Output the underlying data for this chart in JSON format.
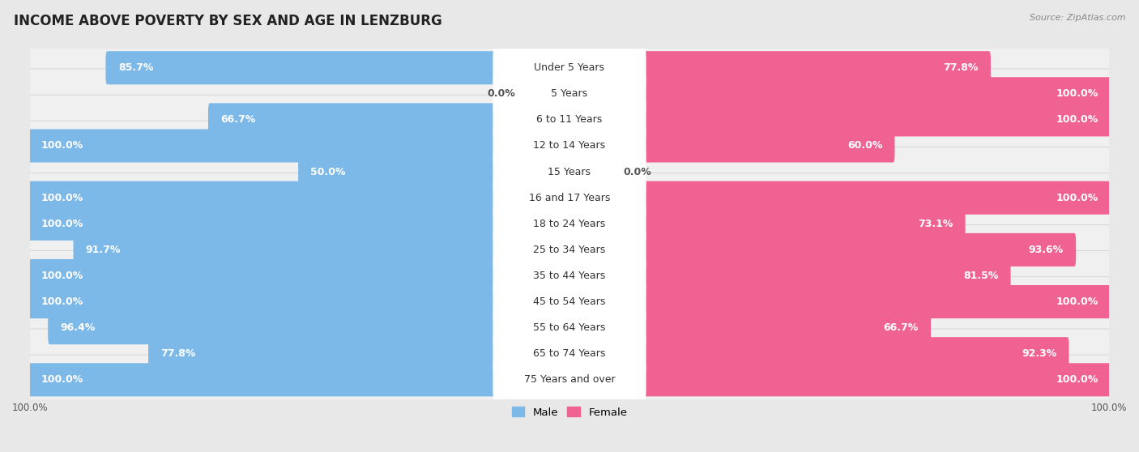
{
  "title": "INCOME ABOVE POVERTY BY SEX AND AGE IN LENZBURG",
  "source": "Source: ZipAtlas.com",
  "categories": [
    "Under 5 Years",
    "5 Years",
    "6 to 11 Years",
    "12 to 14 Years",
    "15 Years",
    "16 and 17 Years",
    "18 to 24 Years",
    "25 to 34 Years",
    "35 to 44 Years",
    "45 to 54 Years",
    "55 to 64 Years",
    "65 to 74 Years",
    "75 Years and over"
  ],
  "male": [
    85.7,
    0.0,
    66.7,
    100.0,
    50.0,
    100.0,
    100.0,
    91.7,
    100.0,
    100.0,
    96.4,
    77.8,
    100.0
  ],
  "female": [
    77.8,
    100.0,
    100.0,
    60.0,
    0.0,
    100.0,
    73.1,
    93.6,
    81.5,
    100.0,
    66.7,
    92.3,
    100.0
  ],
  "male_color": "#7cb9e8",
  "male_color_light": "#b8d8f0",
  "female_color": "#f06292",
  "female_color_light": "#f8bbd0",
  "bg_color": "#e8e8e8",
  "row_bg_color": "#f0f0f0",
  "bar_height": 0.68,
  "title_fontsize": 12,
  "label_fontsize": 9,
  "cat_fontsize": 9
}
